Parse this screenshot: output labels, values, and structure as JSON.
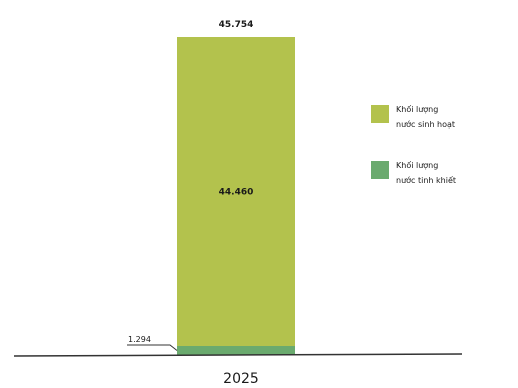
{
  "chart_data": {
    "type": "bar",
    "stacked": true,
    "categories": [
      "2025"
    ],
    "series": [
      {
        "name": "Khối lượng nước tinh khiết",
        "values": [
          1.294
        ],
        "display": "1.294",
        "color": "#6aaa6e"
      },
      {
        "name": "Khối lượng nước sinh hoạt",
        "values": [
          44.46
        ],
        "display": "44.460",
        "color": "#b3c24d"
      }
    ],
    "total": {
      "value": 45.754,
      "display": "45.754"
    },
    "ylim": [
      0,
      47
    ],
    "grid": false,
    "legend": {
      "position": "right",
      "entries": [
        {
          "line1": "Khối lượng",
          "line2": "nước sinh hoạt",
          "color": "#b3c24d"
        },
        {
          "line1": "Khối lượng",
          "line2": "nước tinh khiết",
          "color": "#6aaa6e"
        }
      ]
    }
  }
}
